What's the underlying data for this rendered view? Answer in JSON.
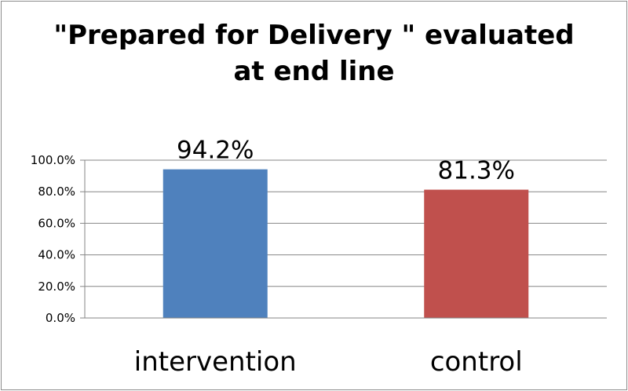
{
  "chart_data": {
    "type": "bar",
    "title_lines": [
      "\"Prepared for Delivery \" evaluated",
      "at end line"
    ],
    "categories": [
      "intervention",
      "control"
    ],
    "values": [
      94.2,
      81.3
    ],
    "data_labels": [
      "94.2%",
      "81.3%"
    ],
    "ylim": [
      0,
      100
    ],
    "yticks": [
      0,
      20,
      40,
      60,
      80,
      100
    ],
    "ytick_labels": [
      "0.0%",
      "20.0%",
      "40.0%",
      "60.0%",
      "80.0%",
      "100.0%"
    ],
    "grid": true,
    "legend": "none",
    "colors": [
      "#4f81bd",
      "#c0504d"
    ]
  }
}
